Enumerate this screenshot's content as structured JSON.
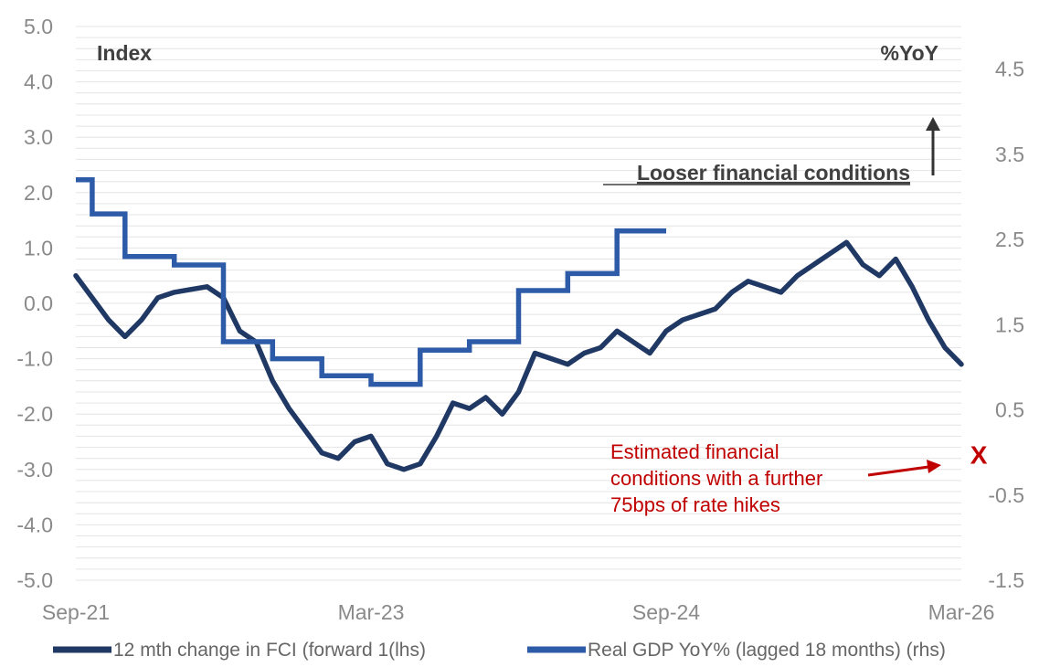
{
  "chart_data": {
    "type": "line",
    "left_axis": {
      "title": "Index",
      "ylim": [
        -5.0,
        5.0
      ],
      "ticks": [
        "5.0",
        "4.0",
        "3.0",
        "2.0",
        "1.0",
        "0.0",
        "-1.0",
        "-2.0",
        "-3.0",
        "-4.0",
        "-5.0"
      ]
    },
    "right_axis": {
      "title": "%YoY",
      "ylim": [
        -1.5,
        5.0
      ],
      "ticks": [
        "4.5",
        "3.5",
        "2.5",
        "1.5",
        "0.5",
        "-0.5",
        "-1.5"
      ]
    },
    "x_axis": {
      "ticks": [
        "Sep-21",
        "Mar-23",
        "Sep-24",
        "Mar-26"
      ],
      "range": [
        "Sep-21",
        "Mar-26"
      ]
    },
    "grid": true,
    "legend_placement": "bottom",
    "series": [
      {
        "name": "12 mth change in FCI (forward 1(lhs)",
        "axis": "left",
        "color": "#1f3864",
        "x": [
          "2021-09",
          "2021-10",
          "2021-11",
          "2021-12",
          "2022-01",
          "2022-02",
          "2022-03",
          "2022-04",
          "2022-05",
          "2022-06",
          "2022-07",
          "2022-08",
          "2022-09",
          "2022-10",
          "2022-11",
          "2022-12",
          "2023-01",
          "2023-02",
          "2023-03",
          "2023-04",
          "2023-05",
          "2023-06",
          "2023-07",
          "2023-08",
          "2023-09",
          "2023-10",
          "2023-11",
          "2023-12",
          "2024-01",
          "2024-02",
          "2024-03",
          "2024-04",
          "2024-05",
          "2024-06",
          "2024-07",
          "2024-08",
          "2024-09",
          "2024-10",
          "2024-11",
          "2024-12",
          "2025-01",
          "2025-02",
          "2025-03",
          "2025-04",
          "2025-05",
          "2025-06",
          "2025-07",
          "2025-08",
          "2025-09",
          "2025-10",
          "2025-11",
          "2025-12",
          "2026-01",
          "2026-02",
          "2026-03"
        ],
        "values": [
          0.5,
          0.1,
          -0.3,
          -0.6,
          -0.3,
          0.1,
          0.2,
          0.25,
          0.3,
          0.1,
          -0.5,
          -0.7,
          -1.4,
          -1.9,
          -2.3,
          -2.7,
          -2.8,
          -2.5,
          -2.4,
          -2.9,
          -3.0,
          -2.9,
          -2.4,
          -1.8,
          -1.9,
          -1.7,
          -2.0,
          -1.6,
          -0.9,
          -1.0,
          -1.1,
          -0.9,
          -0.8,
          -0.5,
          -0.7,
          -0.9,
          -0.5,
          -0.3,
          -0.2,
          -0.1,
          0.2,
          0.4,
          0.3,
          0.2,
          0.5,
          0.7,
          0.9,
          1.1,
          0.7,
          0.5,
          0.8,
          0.3,
          -0.3,
          -0.8,
          -1.1
        ]
      },
      {
        "name": "Real GDP YoY% (lagged 18 months) (rhs)",
        "axis": "right",
        "color": "#2e5ba8",
        "x": [
          "2021-09",
          "2021-10",
          "2021-12",
          "2022-03",
          "2022-06",
          "2022-09",
          "2022-12",
          "2023-01",
          "2023-03",
          "2023-06",
          "2023-09",
          "2023-12",
          "2024-03",
          "2024-06",
          "2024-09"
        ],
        "values": [
          3.2,
          2.8,
          2.3,
          2.2,
          1.3,
          1.1,
          0.9,
          0.9,
          0.8,
          1.2,
          1.3,
          1.9,
          2.1,
          2.6,
          2.6
        ]
      }
    ],
    "annotations": {
      "looser": "Looser financial conditions",
      "estimated_lines": [
        "Estimated financial",
        "conditions with a further",
        "75bps of rate hikes"
      ],
      "x_marker": "X",
      "x_marker_date": "2026-02",
      "x_marker_value_left": -2.7
    }
  }
}
